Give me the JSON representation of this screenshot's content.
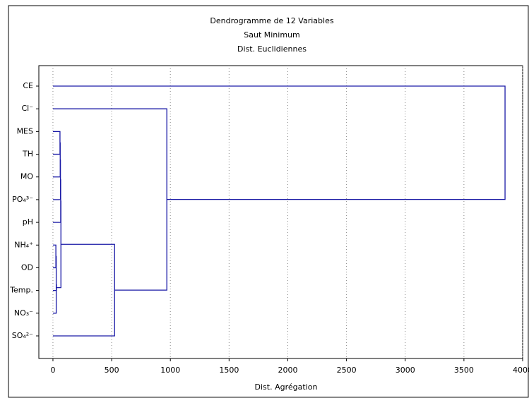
{
  "chart_data": {
    "type": "dendrogram",
    "title": "Dendrogramme de 12 Variables",
    "subtitle": "Saut Minimum",
    "subtitle2": "Dist. Euclidiennes",
    "xlabel": "Dist. Agrégation",
    "categories": [
      "CE",
      "Cl⁻",
      "MES",
      "TH",
      "MO",
      "PO₄³⁻",
      "pH",
      "NH₄⁺",
      "OD",
      "Temp.",
      "NO₃⁻",
      "SO₄²⁻"
    ],
    "merges": [
      {
        "children": [
          7,
          8
        ],
        "height": 25
      },
      {
        "children": [
          12,
          10
        ],
        "height": 28
      },
      {
        "children": [
          13,
          9
        ],
        "height": 30
      },
      {
        "children": [
          2,
          3
        ],
        "height": 60
      },
      {
        "children": [
          15,
          4
        ],
        "height": 62
      },
      {
        "children": [
          16,
          5
        ],
        "height": 64
      },
      {
        "children": [
          17,
          6
        ],
        "height": 66
      },
      {
        "children": [
          18,
          14
        ],
        "height": 68
      },
      {
        "children": [
          19,
          11
        ],
        "height": 525
      },
      {
        "children": [
          1,
          20
        ],
        "height": 970
      },
      {
        "children": [
          0,
          21
        ],
        "height": 3850
      }
    ],
    "color": "#1a1aa6",
    "xlim": [
      -120,
      4000
    ],
    "xticks": [
      0,
      500,
      1000,
      1500,
      2000,
      2500,
      3000,
      3500,
      4000
    ],
    "grid": true
  }
}
